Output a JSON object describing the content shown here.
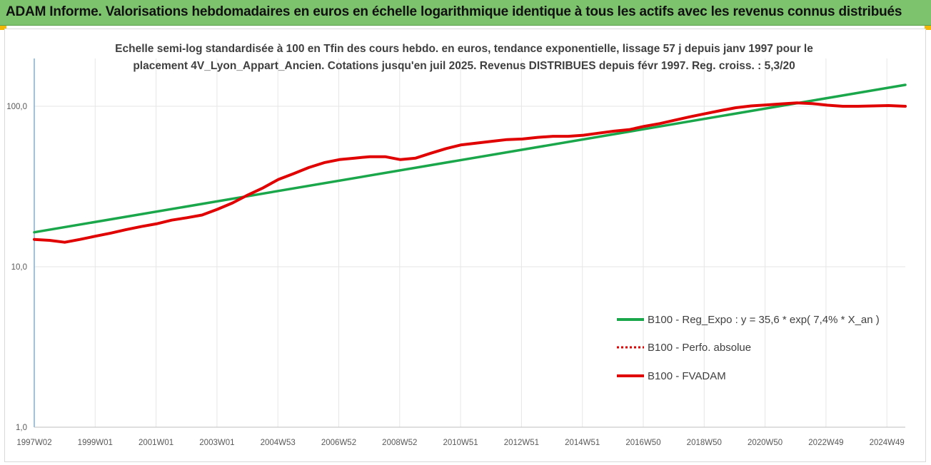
{
  "header": {
    "title": "ADAM Informe. Valorisations hebdomadaires en euros en échelle logarithmique identique à tous les actifs avec les revenus connus distribués",
    "background": "#7dc36e",
    "accent": "#f2b705"
  },
  "chart_data": {
    "type": "line",
    "title": "",
    "subtitle": [
      "Echelle semi-log standardisée à 100 en Tfin des cours hebdo. en euros, tendance exponentielle, lissage 57 j depuis janv 1997 pour le",
      "placement 4V_Lyon_Appart_Ancien. Cotations jusqu'en juil 2025. Revenus DISTRIBUES depuis févr 1997. Reg. croiss. : 5,3/20"
    ],
    "xlabel": "",
    "ylabel": "",
    "y_scale": "log",
    "ylim": [
      1,
      200
    ],
    "y_ticks": [
      "100,0",
      "10,0",
      "1,0"
    ],
    "x_ticks": [
      "1997W02",
      "1999W01",
      "2001W01",
      "2003W01",
      "2004W53",
      "2006W52",
      "2008W52",
      "2010W51",
      "2012W51",
      "2014W51",
      "2016W50",
      "2018W50",
      "2020W50",
      "2022W49",
      "2024W49"
    ],
    "xlim": [
      1997.0,
      2025.55
    ],
    "grid": "vertical",
    "legend_position": "right",
    "series": [
      {
        "name": "B100 - Reg_Expo : y = 35,6 * exp( 7,4% *  X_an )",
        "color": "#1aa64a",
        "style": "solid",
        "x": [
          1997.0,
          2025.55
        ],
        "y": [
          16.4,
          136.0
        ]
      },
      {
        "name": "B100 - Perfo. absolue",
        "color": "#e00000",
        "style": "dotted",
        "x": [],
        "y": []
      },
      {
        "name": "B100 - FVADAM",
        "color": "#e00000",
        "style": "solid",
        "x": [
          1997.0,
          1997.5,
          1998.0,
          1998.5,
          1999.0,
          1999.5,
          2000.0,
          2000.5,
          2001.0,
          2001.5,
          2002.0,
          2002.5,
          2003.0,
          2003.5,
          2004.0,
          2004.5,
          2005.0,
          2005.5,
          2006.0,
          2006.5,
          2007.0,
          2007.5,
          2008.0,
          2008.5,
          2009.0,
          2009.5,
          2010.0,
          2010.5,
          2011.0,
          2011.5,
          2012.0,
          2012.5,
          2013.0,
          2013.5,
          2014.0,
          2014.5,
          2015.0,
          2015.5,
          2016.0,
          2016.5,
          2017.0,
          2017.5,
          2018.0,
          2018.5,
          2019.0,
          2019.5,
          2020.0,
          2020.5,
          2021.0,
          2021.5,
          2022.0,
          2022.5,
          2023.0,
          2023.5,
          2024.0,
          2024.5,
          2025.0,
          2025.55
        ],
        "y": [
          14.8,
          14.6,
          14.2,
          14.8,
          15.5,
          16.2,
          17.0,
          17.8,
          18.5,
          19.5,
          20.2,
          21.0,
          22.8,
          25.0,
          28.0,
          31.0,
          35.0,
          38.0,
          41.5,
          44.5,
          46.5,
          47.5,
          48.5,
          48.5,
          46.5,
          47.5,
          51.0,
          54.5,
          57.5,
          59.0,
          60.5,
          62.0,
          62.5,
          64.0,
          65.0,
          65.0,
          66.0,
          68.0,
          70.0,
          71.5,
          75.0,
          78.0,
          82.0,
          86.0,
          90.0,
          94.0,
          98.0,
          100.5,
          102.0,
          103.5,
          105.0,
          104.0,
          101.5,
          100.0,
          100.0,
          100.5,
          101.0,
          100.0
        ]
      }
    ]
  }
}
